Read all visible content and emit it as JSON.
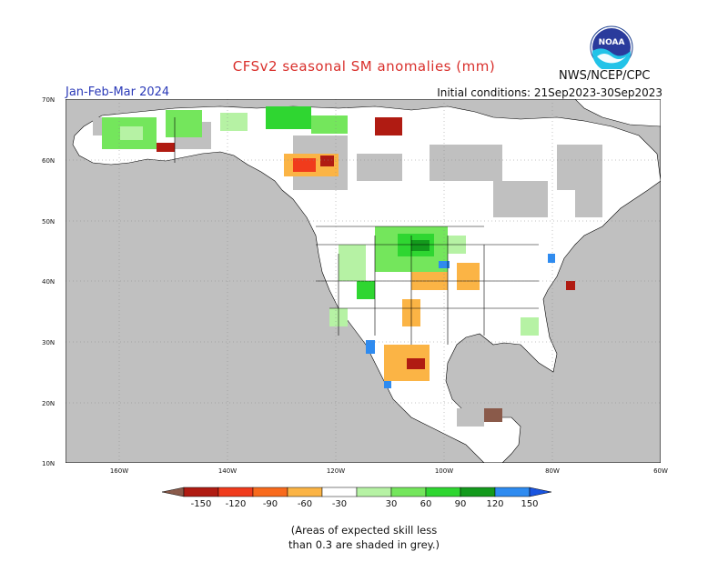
{
  "header": {
    "title": "CFSv2 seasonal SM anomalies (mm)",
    "agency": "NWS/NCEP/CPC",
    "season": "Jan-Feb-Mar 2024",
    "initial_conditions": "Initial conditions: 21Sep2023-30Sep2023",
    "logo_text": "NOAA"
  },
  "map": {
    "lat_labels": [
      "70N",
      "60N",
      "50N",
      "40N",
      "30N",
      "20N",
      "10N"
    ],
    "lon_labels": [
      "160W",
      "140W",
      "120W",
      "100W",
      "80W",
      "60W"
    ],
    "colors": {
      "land": "#ffffff",
      "no_skill": "#c0c0c0",
      "dry_150": "#8a5a4a",
      "dry_120": "#b01b12",
      "dry_90": "#f03b1c",
      "dry_60": "#f86a1c",
      "dry_30": "#fbb445",
      "wet_30": "#b6f2a4",
      "wet_60": "#74e65c",
      "wet_90": "#2fd631",
      "wet_120": "#139a1c",
      "wet_150": "#2e8bf0",
      "wet_max": "#1a55e0"
    }
  },
  "legend": {
    "labels": [
      "-150",
      "-120",
      "-90",
      "-60",
      "-30",
      "30",
      "60",
      "90",
      "120",
      "150"
    ],
    "colors": [
      "#8a5a4a",
      "#b01b12",
      "#f03b1c",
      "#f86a1c",
      "#fbb445",
      "#ffffff",
      "#b6f2a4",
      "#74e65c",
      "#2fd631",
      "#139a1c",
      "#2e8bf0",
      "#1a55e0"
    ]
  },
  "footnote": {
    "line1": "(Areas of expected skill less",
    "line2": "than 0.3 are shaded in grey.)"
  }
}
